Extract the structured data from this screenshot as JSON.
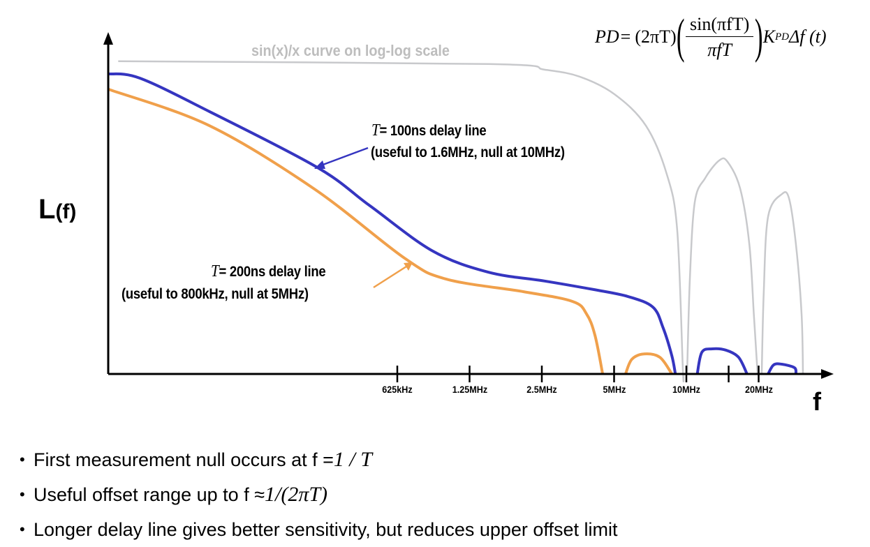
{
  "formula": {
    "lhs": "PD",
    "equals": "=",
    "factor": "(2πT)",
    "numerator": "sin(πfT)",
    "denominator": "πfT",
    "k": "K",
    "k_sub": "PD",
    "tail": "Δf (t)"
  },
  "chart_data": {
    "type": "line",
    "title": "",
    "xlabel": "f",
    "ylabel": "L",
    "ylabel_suffix": "(f)",
    "x_scale": "log",
    "y_scale": "log (no tick labels)",
    "xlim_MHz": [
      0.039,
      45
    ],
    "grid": false,
    "x_ticks": [
      {
        "f_MHz": 0.625,
        "label": "625kHz"
      },
      {
        "f_MHz": 1.25,
        "label": "1.25MHz"
      },
      {
        "f_MHz": 2.5,
        "label": "2.5MHz"
      },
      {
        "f_MHz": 5,
        "label": "5MHz"
      },
      {
        "f_MHz": 10,
        "label": "10MHz"
      },
      {
        "f_MHz": 15,
        "label": ""
      },
      {
        "f_MHz": 20,
        "label": "20MHz"
      }
    ],
    "level_units": "relative (a.u., 0 = axis, 100 = top)",
    "series": [
      {
        "key": "sinc",
        "color": "#c8c9cc",
        "segments": [
          [
            [
              0.043,
              99.6
            ],
            [
              1.5,
              98.7
            ],
            [
              2.57,
              96.9
            ],
            [
              3.59,
              94.7
            ],
            [
              5.02,
              89.1
            ],
            [
              6.78,
              79.1
            ],
            [
              8.29,
              63.6
            ],
            [
              9.16,
              45.8
            ],
            [
              9.67,
              1.3
            ],
            [
              9.73,
              0
            ]
          ],
          [
            [
              10.07,
              0
            ],
            [
              10.34,
              30.2
            ],
            [
              10.84,
              54.7
            ],
            [
              11.98,
              62.4
            ],
            [
              13.7,
              68
            ],
            [
              14.84,
              67.6
            ],
            [
              16.75,
              59.1
            ],
            [
              18.3,
              41.3
            ],
            [
              19.1,
              19.1
            ],
            [
              19.8,
              0
            ]
          ],
          [
            [
              20.6,
              0
            ],
            [
              21.0,
              25.8
            ],
            [
              21.9,
              50.2
            ],
            [
              25.0,
              57.3
            ],
            [
              26.8,
              55.8
            ],
            [
              28.6,
              41.3
            ],
            [
              30.2,
              19.1
            ],
            [
              30.6,
              0
            ]
          ]
        ]
      },
      {
        "key": "t100",
        "color": "#3535c0",
        "segments": [
          [
            [
              0.039,
              95.6
            ],
            [
              0.053,
              94.2
            ],
            [
              0.103,
              83.6
            ],
            [
              0.29,
              65.8
            ],
            [
              0.48,
              53.6
            ],
            [
              0.88,
              39.1
            ],
            [
              1.5,
              32.4
            ],
            [
              2.57,
              29.6
            ],
            [
              4.1,
              26.9
            ],
            [
              5.7,
              24.7
            ],
            [
              7.25,
              21.3
            ],
            [
              8.0,
              14.7
            ],
            [
              8.7,
              5.8
            ],
            [
              9.0,
              0
            ]
          ],
          [
            [
              11.1,
              0
            ],
            [
              11.6,
              6.9
            ],
            [
              12.8,
              8.0
            ],
            [
              14.6,
              7.6
            ],
            [
              16.5,
              5.3
            ],
            [
              17.9,
              0
            ]
          ],
          [
            [
              21.9,
              0
            ],
            [
              23.1,
              2.9
            ],
            [
              25.0,
              3.1
            ],
            [
              28.2,
              2.0
            ],
            [
              28.6,
              0
            ]
          ]
        ]
      },
      {
        "key": "t200",
        "color": "#f0a04b",
        "segments": [
          [
            [
              0.039,
              90.7
            ],
            [
              0.103,
              79.1
            ],
            [
              0.28,
              59.1
            ],
            [
              0.67,
              36.9
            ],
            [
              1.0,
              30.2
            ],
            [
              2.1,
              26.2
            ],
            [
              3.36,
              23.1
            ],
            [
              3.84,
              19.1
            ],
            [
              4.16,
              12.4
            ],
            [
              4.48,
              0
            ]
          ],
          [
            [
              5.58,
              0
            ],
            [
              5.93,
              4.7
            ],
            [
              6.69,
              6.4
            ],
            [
              7.76,
              5.3
            ],
            [
              8.7,
              0
            ]
          ]
        ]
      }
    ],
    "annotations": {
      "sinc_label": "sin(x)/x curve on log-log scale",
      "t100_T": "T",
      "t100_line1": "= 100ns delay line",
      "t100_line2": "(useful to 1.6MHz, null at 10MHz)",
      "t200_T": "T",
      "t200_line1": "= 200ns delay line",
      "t200_line2": "(useful to 800kHz, null at 5MHz)"
    }
  },
  "bullets": [
    {
      "text": "First measurement null occurs at f = ",
      "math": "1 / T"
    },
    {
      "text": "Useful offset range up to  f ≈ ",
      "math": "1/(2πT)"
    },
    {
      "text": "Longer delay line gives better sensitivity, but reduces upper offset limit",
      "math": ""
    }
  ],
  "bullet_symbol": "•"
}
